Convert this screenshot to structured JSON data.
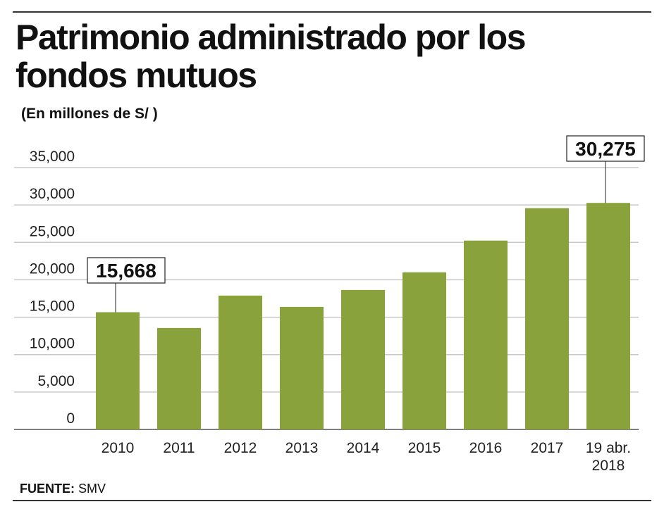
{
  "chart_data": {
    "type": "bar",
    "title": "Patrimonio administrado por los fondos mutuos",
    "subtitle": "(En millones de S/ )",
    "categories": [
      "2010",
      "2011",
      "2012",
      "2013",
      "2014",
      "2015",
      "2016",
      "2017",
      "19 abr. 2018"
    ],
    "values": [
      15668,
      13560,
      17890,
      16380,
      18640,
      21000,
      25240,
      29570,
      30275
    ],
    "ylim": [
      0,
      35000
    ],
    "yticks": [
      "0",
      "5,000",
      "10,000",
      "15,000",
      "20,000",
      "25,000",
      "30,000",
      "35,000"
    ],
    "grid": true,
    "annotations": [
      {
        "category": "2010",
        "label": "15,668"
      },
      {
        "category": "19 abr. 2018",
        "label": "30,275"
      }
    ],
    "bar_color": "#8aa23c"
  },
  "source": {
    "label": "FUENTE:",
    "value": "SMV"
  }
}
